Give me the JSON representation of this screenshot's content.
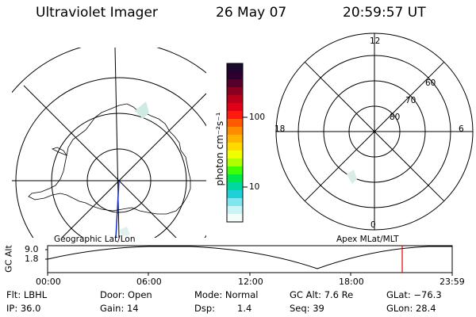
{
  "header": {
    "title": "Ultraviolet Imager",
    "date": "26 May 07",
    "time": "20:59:57 UT"
  },
  "geo_panel": {
    "caption": "Geographic Lat/Lon"
  },
  "mag_panel": {
    "caption": "Apex MLat/MLT",
    "mlt_labels": {
      "top": "12",
      "left": "18",
      "right": "6",
      "bottom": "0"
    },
    "lat_labels": [
      "60",
      "70",
      "80"
    ]
  },
  "colorbar": {
    "unit_label": "photon cm⁻²s⁻¹",
    "ticks": [
      "100",
      "10"
    ],
    "colors": [
      "#1a0a2e",
      "#2b0030",
      "#55002a",
      "#8a0020",
      "#b8001a",
      "#e0001a",
      "#ff1a10",
      "#ff5a00",
      "#ff8c00",
      "#ffb400",
      "#ffd800",
      "#f0ff00",
      "#b0ff00",
      "#40ff00",
      "#00e84a",
      "#00d8a0",
      "#20d0d8",
      "#7fe6ee",
      "#c8f4f6",
      "#f4fcfc"
    ]
  },
  "alt_plot": {
    "ylabel": "GC Alt",
    "yticks": [
      "9.0",
      "1.8"
    ],
    "xticks": [
      "00:00",
      "06:00",
      "12:00",
      "18:00",
      "23:59"
    ]
  },
  "info": {
    "flt": "Flt: LBHL",
    "ip": "IP: 36.0",
    "door": "Door: Open",
    "gain": "Gain: 14",
    "mode": "Mode: Normal",
    "dsp_label": "Dsp:",
    "dsp_value": "1.4",
    "gcalt": "GC Alt: 7.6 Re",
    "seq": "Seq: 39",
    "glat": "GLat: −76.3",
    "glon": "GLon:  28.4"
  }
}
